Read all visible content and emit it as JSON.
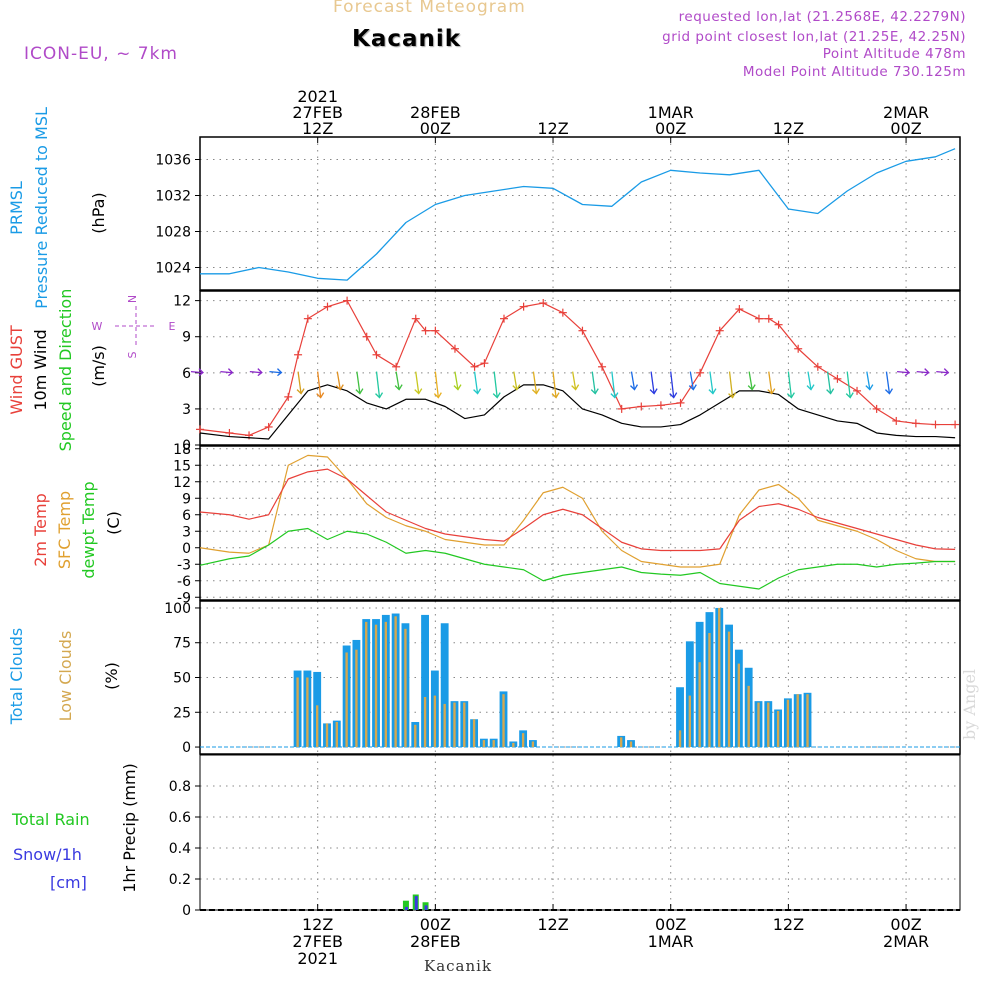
{
  "header": {
    "title": "Forecast Meteogram",
    "location": "Kacanik",
    "model": "ICON-EU, ~ 7km",
    "requested": "requested lon,lat (21.2568E, 42.2279N)",
    "grid_point": "grid point closest lon,lat (21.25E, 42.25N)",
    "point_altitude": "Point Altitude 478m",
    "model_altitude": "Model Point Altitude 730.125m",
    "watermark": "by Angel",
    "bottom_station": "Kacanik"
  },
  "time_axis": {
    "year": "2021",
    "tick_hours": [
      12,
      24,
      36,
      48,
      60,
      72
    ],
    "top_labels": [
      [
        "2021",
        "27FEB",
        "12Z"
      ],
      [
        "28FEB",
        "00Z"
      ],
      [
        "12Z"
      ],
      [
        "1MAR",
        "00Z"
      ],
      [
        "12Z"
      ],
      [
        "2MAR",
        "00Z"
      ]
    ],
    "bottom_labels": [
      [
        "12Z",
        "27FEB",
        "2021"
      ],
      [
        "00Z",
        "28FEB"
      ],
      [
        "12Z"
      ],
      [
        "00Z",
        "1MAR"
      ],
      [
        "12Z"
      ],
      [
        "00Z",
        "2MAR"
      ]
    ]
  },
  "colors": {
    "pressure": "#1a9be6",
    "gust": "#e8403a",
    "wind": "#000000",
    "temp2m": "#e8403a",
    "sfc_temp": "#e0a030",
    "dewpoint": "#22c822",
    "total_clouds": "#1a9be6",
    "low_clouds": "#d4a850",
    "rain": "#22c822",
    "snow": "#3a3ae0",
    "compass": "#b04ac8",
    "grid": "#888888"
  },
  "labels": {
    "pressure": [
      "PRMSL",
      "Pressure Reduced to MSL",
      "(hPa)"
    ],
    "wind": [
      "Wind GUST",
      "10m Wind",
      "Speed and Direction",
      "(m/s)"
    ],
    "compass": [
      "N",
      "W",
      "E",
      "S"
    ],
    "temp": [
      "2m Temp",
      "SFC Temp",
      "dewpt Temp",
      "(C)"
    ],
    "clouds": [
      "Total Clouds",
      "Low Clouds",
      "(%)"
    ],
    "precip": [
      "Total Rain",
      "Snow/1h",
      "[cm]",
      "1hr Precip (mm)"
    ]
  },
  "chart_data": [
    {
      "type": "line",
      "title": "PRMSL Pressure Reduced to MSL",
      "ylabel": "(hPa)",
      "ylim": [
        1021.5,
        1038.5
      ],
      "yticks": [
        1024,
        1028,
        1032,
        1036
      ],
      "grid": true,
      "series": [
        {
          "name": "PRMSL",
          "x": [
            0,
            3,
            6,
            9,
            12,
            15,
            18,
            21,
            24,
            27,
            30,
            33,
            36,
            39,
            42,
            45,
            48,
            51,
            54,
            57,
            60,
            63,
            66,
            69,
            72,
            75,
            77
          ],
          "values": [
            1023.3,
            1023.3,
            1024.0,
            1023.5,
            1022.8,
            1022.6,
            1025.5,
            1029.0,
            1031.0,
            1032.0,
            1032.5,
            1033.0,
            1032.8,
            1031.0,
            1030.8,
            1033.5,
            1034.8,
            1034.5,
            1034.3,
            1034.8,
            1030.5,
            1030.0,
            1032.5,
            1034.5,
            1035.8,
            1036.3,
            1037.2
          ]
        }
      ]
    },
    {
      "type": "line",
      "title": "Wind GUST / 10m Wind Speed and Direction",
      "ylabel": "(m/s)",
      "ylim": [
        0,
        12.8
      ],
      "yticks": [
        0,
        3,
        6,
        9,
        12
      ],
      "grid": true,
      "series": [
        {
          "name": "Wind GUST",
          "x": [
            0,
            3,
            5,
            7,
            9,
            10,
            11,
            13,
            15,
            17,
            18,
            20,
            22,
            23,
            24,
            26,
            28,
            29,
            31,
            33,
            35,
            37,
            39,
            41,
            43,
            45,
            47,
            49,
            51,
            53,
            55,
            57,
            58,
            59,
            61,
            63,
            65,
            67,
            69,
            71,
            73,
            75,
            77
          ],
          "values": [
            1.3,
            1.0,
            0.8,
            1.5,
            4.0,
            7.5,
            10.5,
            11.5,
            12.0,
            9.0,
            7.5,
            6.5,
            10.5,
            9.5,
            9.5,
            8.0,
            6.5,
            6.8,
            10.5,
            11.5,
            11.8,
            11.0,
            9.5,
            6.5,
            3.0,
            3.2,
            3.3,
            3.5,
            6.0,
            9.5,
            11.3,
            10.5,
            10.5,
            10.0,
            8.0,
            6.5,
            5.5,
            4.5,
            3.0,
            2.0,
            1.8,
            1.7,
            1.7
          ]
        },
        {
          "name": "10m Wind",
          "x": [
            0,
            3,
            5,
            7,
            9,
            11,
            13,
            15,
            17,
            19,
            21,
            23,
            25,
            27,
            29,
            31,
            33,
            35,
            37,
            39,
            41,
            43,
            45,
            47,
            49,
            51,
            53,
            55,
            57,
            59,
            61,
            63,
            65,
            67,
            69,
            71,
            73,
            75,
            77
          ],
          "values": [
            1.0,
            0.7,
            0.6,
            0.5,
            2.5,
            4.5,
            5.0,
            4.5,
            3.5,
            3.0,
            3.8,
            3.8,
            3.2,
            2.2,
            2.5,
            4.0,
            5.0,
            5.0,
            4.5,
            3.0,
            2.5,
            1.8,
            1.5,
            1.5,
            1.7,
            2.5,
            3.5,
            4.5,
            4.5,
            4.2,
            3.0,
            2.5,
            2.0,
            1.8,
            1.0,
            0.8,
            0.7,
            0.7,
            0.6
          ]
        },
        {
          "name": "10m Wind direction (arrows)",
          "x": [
            0,
            3,
            6,
            8,
            10,
            12,
            14,
            16,
            18,
            20,
            22,
            24,
            26,
            28,
            30,
            32,
            34,
            36,
            38,
            40,
            42,
            44,
            46,
            48,
            50,
            52,
            54,
            56,
            58,
            60,
            62,
            64,
            66,
            68,
            70,
            72,
            74,
            76
          ],
          "values": [
            6.1,
            6.1,
            6.1,
            6.1,
            6.1,
            6.1,
            6.1,
            6.1,
            6.1,
            6.1,
            6.1,
            6.1,
            6.1,
            6.1,
            6.1,
            6.1,
            6.1,
            6.1,
            6.1,
            6.1,
            6.1,
            6.1,
            6.1,
            6.1,
            6.1,
            6.1,
            6.1,
            6.1,
            6.1,
            6.1,
            6.1,
            6.1,
            6.1,
            6.1,
            6.1,
            6.1,
            6.1,
            6.1
          ]
        }
      ]
    },
    {
      "type": "line",
      "title": "2m Temp / SFC Temp / dewpt Temp",
      "ylabel": "(C)",
      "ylim": [
        -9.5,
        18.5
      ],
      "yticks": [
        -9,
        -6,
        -3,
        0,
        3,
        6,
        9,
        12,
        15,
        18
      ],
      "grid": true,
      "series": [
        {
          "name": "2m Temp",
          "x": [
            0,
            3,
            5,
            7,
            9,
            11,
            13,
            15,
            17,
            19,
            21,
            23,
            25,
            27,
            29,
            31,
            33,
            35,
            37,
            39,
            41,
            43,
            45,
            47,
            49,
            51,
            53,
            55,
            57,
            59,
            61,
            63,
            65,
            67,
            69,
            71,
            73,
            75,
            77
          ],
          "values": [
            6.5,
            6.0,
            5.2,
            6.0,
            12.5,
            13.8,
            14.3,
            12.5,
            9.5,
            6.5,
            5.0,
            3.5,
            2.5,
            2.0,
            1.5,
            1.2,
            3.5,
            6.0,
            7.0,
            6.0,
            3.5,
            1.0,
            -0.2,
            -0.5,
            -0.5,
            -0.5,
            -0.2,
            5.0,
            7.5,
            8.0,
            7.0,
            5.5,
            4.5,
            3.5,
            2.5,
            1.5,
            0.5,
            -0.2,
            -0.3
          ]
        },
        {
          "name": "SFC Temp",
          "x": [
            0,
            3,
            5,
            7,
            9,
            11,
            13,
            15,
            17,
            19,
            21,
            23,
            25,
            27,
            29,
            31,
            33,
            35,
            37,
            39,
            41,
            43,
            45,
            47,
            49,
            51,
            53,
            55,
            57,
            59,
            61,
            63,
            65,
            67,
            69,
            71,
            73,
            75,
            77
          ],
          "values": [
            0.0,
            -0.8,
            -1.0,
            0.5,
            15.0,
            16.8,
            16.5,
            12.5,
            8.0,
            5.5,
            4.0,
            3.0,
            1.5,
            1.0,
            0.5,
            0.5,
            5.0,
            10.0,
            11.0,
            9.0,
            3.0,
            -0.5,
            -2.5,
            -3.0,
            -3.5,
            -3.5,
            -3.0,
            6.0,
            10.5,
            11.5,
            9.0,
            5.0,
            4.0,
            3.0,
            1.5,
            -0.5,
            -2.0,
            -2.5,
            -2.5
          ]
        },
        {
          "name": "dewpt Temp",
          "x": [
            0,
            3,
            5,
            7,
            9,
            11,
            13,
            15,
            17,
            19,
            21,
            23,
            25,
            27,
            29,
            31,
            33,
            35,
            37,
            39,
            41,
            43,
            45,
            47,
            49,
            51,
            53,
            55,
            57,
            59,
            61,
            63,
            65,
            67,
            69,
            71,
            73,
            75,
            77
          ],
          "values": [
            -3.2,
            -2.0,
            -1.5,
            0.5,
            3.0,
            3.5,
            1.5,
            3.0,
            2.5,
            1.0,
            -1.0,
            -0.5,
            -1.0,
            -2.0,
            -3.0,
            -3.5,
            -4.0,
            -6.0,
            -5.0,
            -4.5,
            -4.0,
            -3.5,
            -4.5,
            -4.8,
            -5.0,
            -4.5,
            -6.5,
            -7.0,
            -7.5,
            -5.5,
            -4.0,
            -3.5,
            -3.0,
            -3.0,
            -3.5,
            -3.0,
            -2.8,
            -2.5,
            -2.5
          ]
        }
      ]
    },
    {
      "type": "bar",
      "title": "Total Clouds / Low Clouds",
      "ylabel": "(%)",
      "ylim": [
        -5,
        105
      ],
      "yticks": [
        0,
        25,
        50,
        75,
        100
      ],
      "grid": true,
      "x": [
        10,
        11,
        12,
        13,
        14,
        15,
        16,
        17,
        18,
        19,
        20,
        21,
        22,
        23,
        24,
        25,
        26,
        27,
        28,
        29,
        30,
        31,
        32,
        33,
        34,
        35,
        36,
        37,
        38,
        39,
        43,
        44,
        49,
        50,
        51,
        52,
        53,
        54,
        55,
        56,
        57,
        58,
        59,
        60,
        61,
        62,
        63,
        64,
        65,
        66
      ],
      "series": [
        {
          "name": "Total Clouds",
          "values": [
            55,
            55,
            54,
            17,
            19,
            73,
            77,
            92,
            92,
            95,
            96,
            89,
            18,
            95,
            55,
            89,
            33,
            33,
            20,
            6,
            6,
            40,
            4,
            12,
            5,
            0,
            0,
            0,
            0,
            0,
            8,
            5,
            43,
            76,
            90,
            97,
            100,
            88,
            70,
            57,
            33,
            33,
            27,
            35,
            38,
            39,
            0,
            0,
            0,
            0
          ]
        },
        {
          "name": "Low Clouds",
          "values": [
            50,
            50,
            30,
            17,
            18,
            68,
            70,
            90,
            88,
            90,
            94,
            85,
            16,
            36,
            37,
            31,
            32,
            32,
            20,
            5,
            5,
            38,
            3,
            10,
            4,
            0,
            0,
            0,
            0,
            0,
            7,
            4,
            12,
            37,
            61,
            82,
            100,
            83,
            60,
            44,
            32,
            32,
            26,
            34,
            38,
            38,
            0,
            0,
            0,
            0
          ]
        }
      ]
    },
    {
      "type": "bar",
      "title": "Total Rain / Snow/1h",
      "ylabel": "1hr Precip (mm)",
      "ylim": [
        0,
        1.0
      ],
      "yticks": [
        0,
        0.2,
        0.4,
        0.6,
        0.8
      ],
      "grid": true,
      "x": [
        21,
        22,
        23
      ],
      "series": [
        {
          "name": "Total Rain",
          "values": [
            0.06,
            0.1,
            0.05
          ]
        },
        {
          "name": "Snow/1h",
          "values": [
            0.02,
            0.09,
            0.03
          ]
        }
      ]
    }
  ]
}
